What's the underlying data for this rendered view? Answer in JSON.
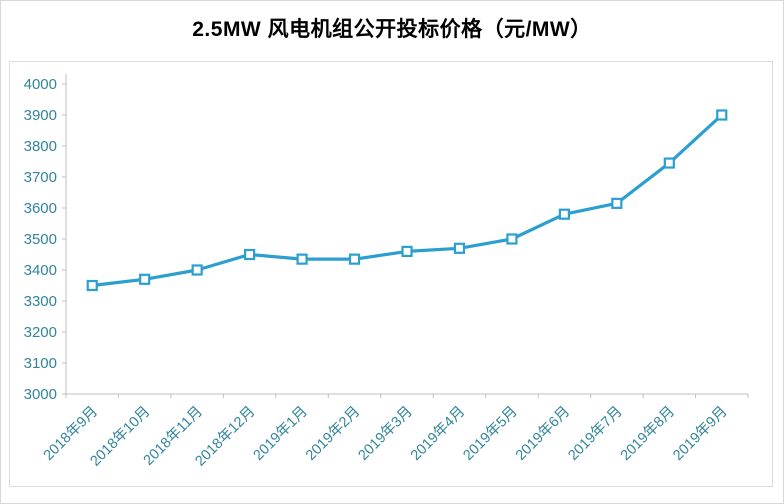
{
  "title": "2.5MW 风电机组公开投标价格（元/MW）",
  "chart_data": {
    "type": "line",
    "title": "2.5MW 风电机组公开投标价格（元/MW）",
    "categories": [
      "2018年9月",
      "2018年10月",
      "2018年11月",
      "2018年12月",
      "2019年1月",
      "2019年2月",
      "2019年3月",
      "2019年4月",
      "2019年5月",
      "2019年6月",
      "2019年7月",
      "2019年8月",
      "2019年9月"
    ],
    "values": [
      3350,
      3370,
      3400,
      3450,
      3435,
      3435,
      3460,
      3470,
      3500,
      3580,
      3615,
      3745,
      3900
    ],
    "xlabel": "",
    "ylabel": "",
    "ylim": [
      3000,
      4000
    ],
    "ytick_step": 100,
    "grid": false,
    "legend_position": "none",
    "line_color": "#2B9FD0",
    "marker": "open-square",
    "marker_fill": "#ffffff",
    "axis_label_color": "#31859B",
    "axis_line_color": "#BFBFBF",
    "frame_border_color": "#DCDCDC"
  }
}
